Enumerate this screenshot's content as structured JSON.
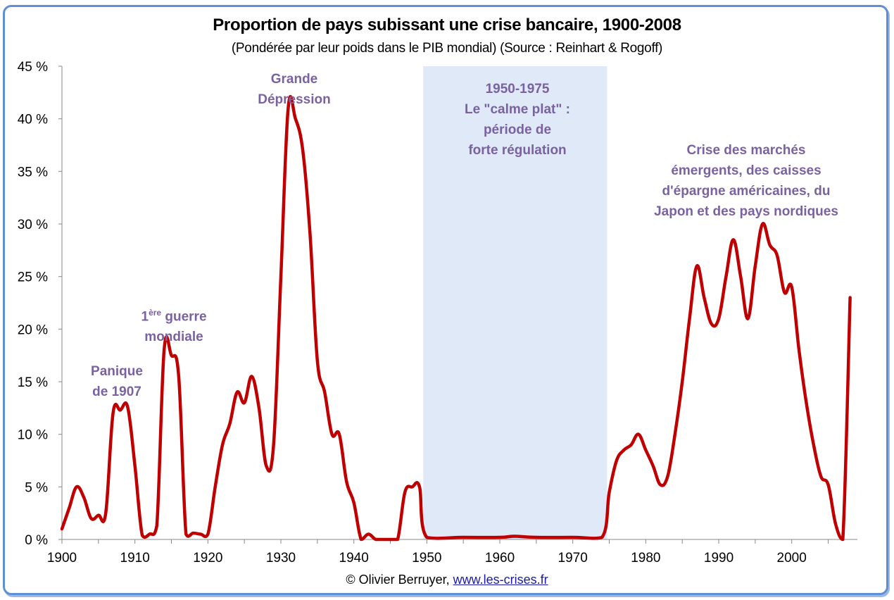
{
  "chart_data": {
    "type": "line",
    "title": "Proportion de pays subissant une crise bancaire, 1900-2008",
    "subtitle": "(Pondérée par leur poids dans le PIB mondial) (Source : Reinhart & Rogoff)",
    "xlabel": "",
    "ylabel": "",
    "xlim": [
      1900,
      2009
    ],
    "ylim": [
      0,
      45
    ],
    "grid": false,
    "x_ticks": [
      "1900",
      "1910",
      "1920",
      "1930",
      "1940",
      "1950",
      "1960",
      "1970",
      "1980",
      "1990",
      "2000"
    ],
    "y_ticks": [
      "0 %",
      "5 %",
      "10 %",
      "15 %",
      "20 %",
      "25 %",
      "30 %",
      "35 %",
      "40 %",
      "45 %"
    ],
    "series": [
      {
        "name": "Proportion (%)",
        "color": "#c00000",
        "x": [
          1900,
          1901,
          1902,
          1903,
          1904,
          1905,
          1906,
          1907,
          1908,
          1909,
          1910,
          1911,
          1912,
          1913,
          1914,
          1915,
          1916,
          1917,
          1918,
          1919,
          1920,
          1921,
          1922,
          1923,
          1924,
          1925,
          1926,
          1927,
          1928,
          1929,
          1930,
          1931,
          1932,
          1933,
          1934,
          1935,
          1936,
          1937,
          1938,
          1939,
          1940,
          1941,
          1942,
          1943,
          1944,
          1945,
          1946,
          1947,
          1948,
          1949,
          1950,
          1955,
          1960,
          1962,
          1965,
          1970,
          1974,
          1975,
          1976,
          1977,
          1978,
          1979,
          1980,
          1981,
          1982,
          1983,
          1984,
          1985,
          1986,
          1987,
          1988,
          1989,
          1990,
          1991,
          1992,
          1993,
          1994,
          1995,
          1996,
          1997,
          1998,
          1999,
          2000,
          2001,
          2002,
          2003,
          2004,
          2005,
          2006,
          2007,
          2008
        ],
        "values": [
          1,
          3,
          5,
          4,
          2,
          2.3,
          2.5,
          12,
          12.3,
          12.6,
          7,
          0.4,
          0.5,
          1.3,
          18,
          17.5,
          15.5,
          0.5,
          0.6,
          0.5,
          0.5,
          5,
          9,
          11,
          14,
          13,
          15.5,
          12.5,
          7,
          9,
          25,
          41,
          40,
          37,
          29,
          17,
          14,
          10,
          10,
          5.5,
          3.5,
          0,
          0.5,
          0,
          0,
          0,
          0,
          4.5,
          5,
          5,
          0.2,
          0.2,
          0.2,
          0.3,
          0.2,
          0.2,
          0.2,
          4.5,
          7.5,
          8.5,
          9,
          10,
          8.5,
          7,
          5.2,
          6,
          10,
          15,
          21,
          26,
          23,
          20.5,
          21,
          25,
          28.5,
          25,
          21,
          26,
          30,
          28,
          27,
          23.5,
          24,
          18,
          13,
          9,
          6,
          5.2,
          1.5,
          0,
          23
        ]
      }
    ],
    "shaded_region": {
      "from": 1949.5,
      "to": 1974.7,
      "color": "#dfe9f7"
    },
    "annotations": [
      {
        "id": "panique",
        "lines": [
          "Panique",
          "de 1907"
        ]
      },
      {
        "id": "guerre",
        "lines": [
          "1",
          "ère",
          " guerre",
          "mondiale"
        ]
      },
      {
        "id": "depression",
        "lines": [
          "Grande",
          "Dépression"
        ]
      },
      {
        "id": "calme",
        "lines": [
          "1950-1975",
          "Le \"calme plat\" :",
          "période de",
          "forte régulation"
        ]
      },
      {
        "id": "emergents",
        "lines": [
          "Crise des marchés",
          "émergents, des caisses",
          "d'épargne américaines, du",
          "Japon et des pays nordiques"
        ]
      }
    ]
  },
  "footer": {
    "credit": "© Olivier Berruyer, ",
    "link": "www.les-crises.fr"
  }
}
